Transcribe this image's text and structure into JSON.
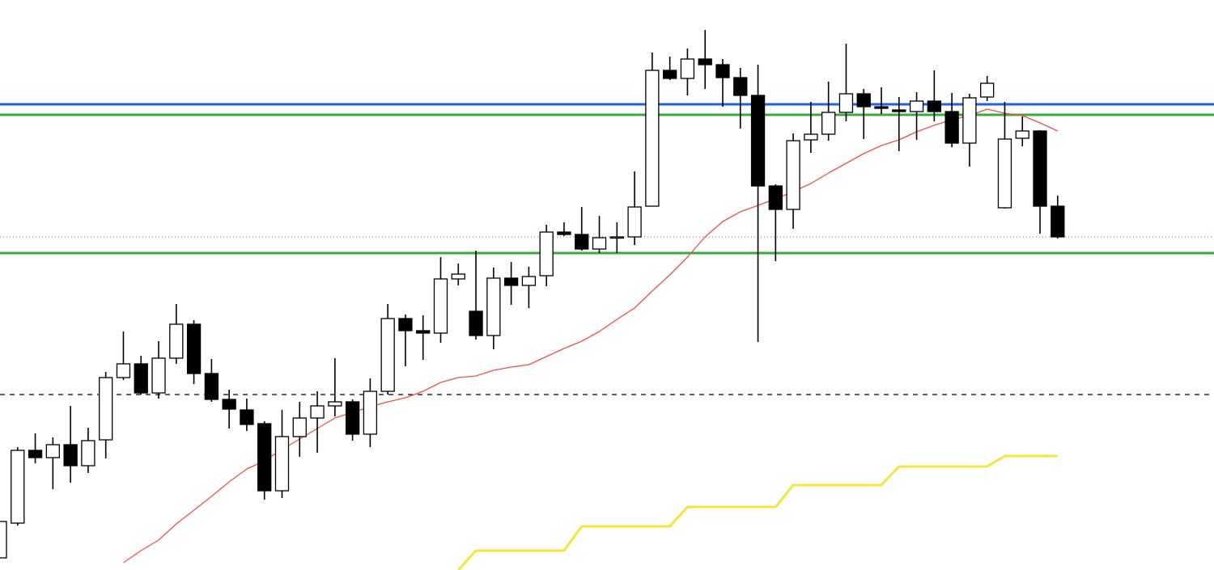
{
  "chart_data": {
    "type": "candlestick",
    "ylim": [
      0,
      705
    ],
    "up_color": "#ffffff",
    "down_color": "#000000",
    "wick_color": "#000000",
    "candles": {
      "open": [
        15,
        58,
        148,
        139,
        155,
        129,
        161,
        238,
        255,
        219,
        262,
        304,
        243,
        211,
        198,
        181,
        98,
        165,
        188,
        203,
        208,
        168,
        221,
        311,
        296,
        293,
        360,
        320,
        290,
        361,
        352,
        364,
        418,
        415,
        397,
        411,
        412,
        450,
        618,
        608,
        632,
        625,
        609,
        587,
        475,
        446,
        532,
        539,
        566,
        589,
        573,
        569,
        567,
        580,
        567,
        528,
        585,
        448,
        534,
        543,
        450
      ],
      "high": [
        60,
        152,
        169,
        164,
        203,
        176,
        245,
        295,
        265,
        283,
        329,
        309,
        261,
        223,
        212,
        184,
        198,
        208,
        221,
        262,
        211,
        237,
        329,
        316,
        315,
        387,
        379,
        395,
        374,
        381,
        375,
        427,
        430,
        449,
        438,
        430,
        493,
        640,
        635,
        645,
        668,
        632,
        621,
        625,
        477,
        540,
        579,
        604,
        651,
        595,
        597,
        585,
        591,
        618,
        590,
        589,
        611,
        579,
        561,
        544,
        463
      ],
      "low": [
        15,
        55,
        132,
        100,
        108,
        120,
        138,
        235,
        217,
        212,
        255,
        230,
        208,
        175,
        172,
        87,
        89,
        140,
        145,
        190,
        160,
        152,
        217,
        252,
        260,
        281,
        352,
        285,
        273,
        328,
        324,
        351,
        413,
        395,
        392,
        392,
        402,
        450,
        606,
        587,
        595,
        573,
        546,
        282,
        382,
        422,
        516,
        531,
        555,
        533,
        564,
        518,
        532,
        555,
        523,
        499,
        580,
        447,
        524,
        416,
        410
      ],
      "close": [
        60,
        148,
        139,
        155,
        129,
        160,
        238,
        255,
        219,
        262,
        304,
        243,
        211,
        199,
        180,
        98,
        165,
        188,
        203,
        208,
        168,
        221,
        311,
        296,
        293,
        360,
        366,
        290,
        361,
        352,
        363,
        418,
        415,
        397,
        411,
        412,
        449,
        618,
        608,
        632,
        625,
        609,
        587,
        475,
        446,
        531,
        539,
        566,
        589,
        573,
        571,
        567,
        580,
        567,
        528,
        584,
        602,
        533,
        543,
        450,
        412
      ]
    },
    "lines": [
      {
        "color": "#f0504a",
        "width": 1.3,
        "values": [
          null,
          null,
          null,
          null,
          null,
          null,
          null,
          9,
          24,
          37,
          57,
          74,
          91,
          109,
          125,
          135,
          149,
          162,
          175,
          188,
          195,
          202,
          208,
          213,
          221,
          232,
          238,
          240,
          247,
          251,
          254,
          264,
          274,
          283,
          295,
          310,
          324,
          345,
          365,
          387,
          412,
          431,
          443,
          451,
          459,
          468,
          478,
          491,
          503,
          515,
          525,
          532,
          542,
          550,
          557,
          562,
          570,
          565,
          562,
          553,
          543
        ]
      },
      {
        "color": "#f5e53a",
        "width": 3,
        "values": [
          null,
          null,
          null,
          null,
          null,
          null,
          null,
          null,
          null,
          null,
          null,
          null,
          null,
          null,
          null,
          null,
          null,
          null,
          null,
          null,
          null,
          null,
          null,
          null,
          null,
          null,
          0,
          24,
          24,
          24,
          24,
          24,
          24,
          54,
          54,
          54,
          54,
          54,
          54,
          78,
          78,
          78,
          78,
          78,
          78,
          105,
          105,
          105,
          105,
          105,
          105,
          128,
          128,
          128,
          128,
          128,
          128,
          141,
          141,
          141,
          141
        ]
      }
    ],
    "hlines": [
      {
        "value": 576,
        "color": "#1f5ef0",
        "width": 3,
        "style": "solid"
      },
      {
        "value": 563,
        "color": "#3aaa3a",
        "width": 3,
        "style": "solid"
      },
      {
        "value": 412,
        "color": "#e04040",
        "width": 1,
        "style": "dotted"
      },
      {
        "value": 392,
        "color": "#3aaa3a",
        "width": 3,
        "style": "solid"
      },
      {
        "value": 217,
        "color": "#000000",
        "width": 1.3,
        "style": "dashed"
      }
    ]
  }
}
